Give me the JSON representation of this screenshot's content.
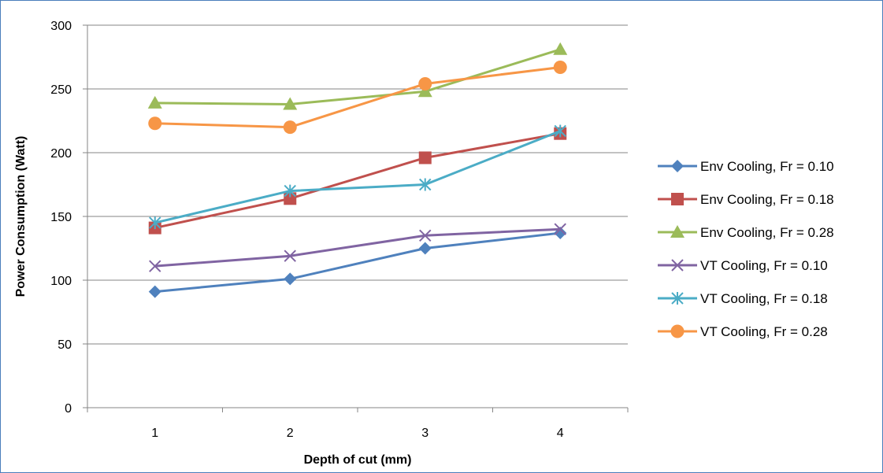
{
  "chart_data": {
    "type": "line",
    "xlabel": "Depth of cut (mm)",
    "ylabel": "Power Consumption (Watt)",
    "categories": [
      "1",
      "2",
      "3",
      "4"
    ],
    "ylim": [
      0,
      300
    ],
    "yticks": [
      0,
      50,
      100,
      150,
      200,
      250,
      300
    ],
    "grid": "horizontal",
    "legend_position": "right",
    "series": [
      {
        "name": "Env Cooling, Fr = 0.10",
        "color": "#4f81bd",
        "marker": "diamond",
        "values": [
          91,
          101,
          125,
          137
        ]
      },
      {
        "name": "Env Cooling, Fr = 0.18",
        "color": "#c0504d",
        "marker": "square",
        "values": [
          141,
          164,
          196,
          215
        ]
      },
      {
        "name": "Env Cooling, Fr = 0.28",
        "color": "#9bbb59",
        "marker": "triangle",
        "values": [
          239,
          238,
          248,
          281
        ]
      },
      {
        "name": "VT Cooling, Fr = 0.10",
        "color": "#8064a2",
        "marker": "x",
        "values": [
          111,
          119,
          135,
          140
        ]
      },
      {
        "name": "VT Cooling, Fr = 0.18",
        "color": "#4bacc6",
        "marker": "star",
        "values": [
          145,
          170,
          175,
          217
        ]
      },
      {
        "name": "VT Cooling, Fr = 0.28",
        "color": "#f79646",
        "marker": "circle",
        "values": [
          223,
          220,
          254,
          267
        ]
      }
    ]
  }
}
